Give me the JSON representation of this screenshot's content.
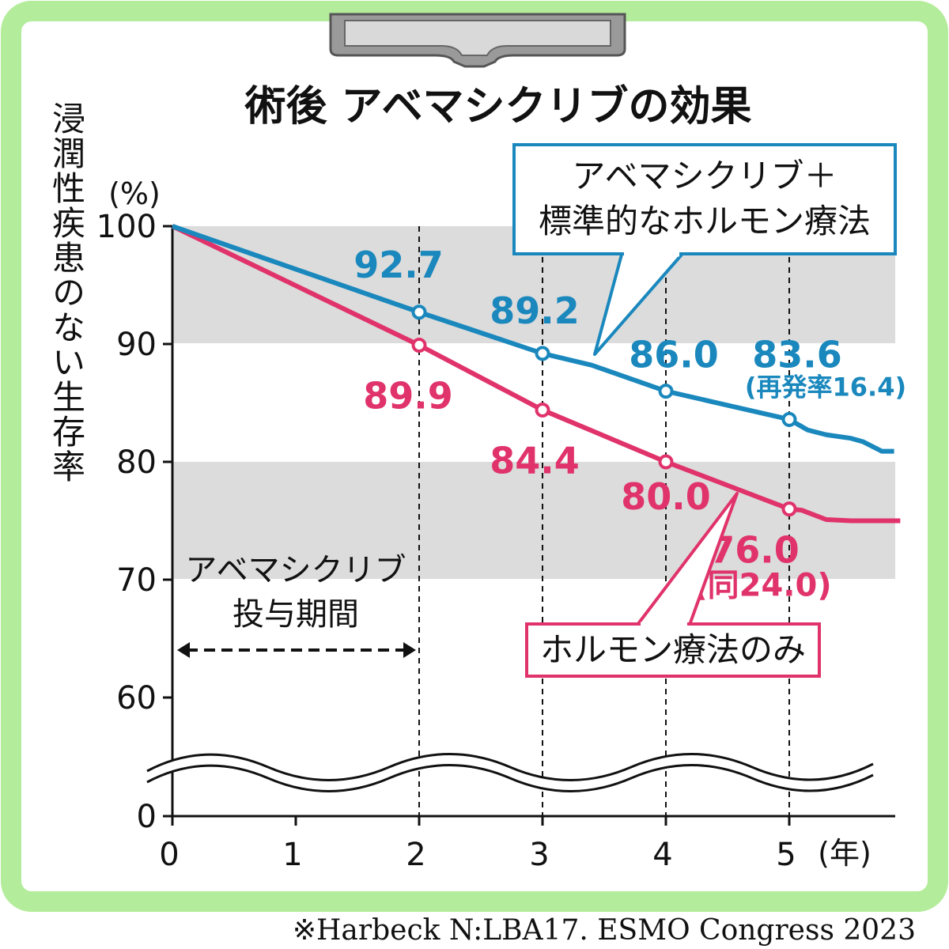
{
  "chart_data": {
    "type": "line",
    "title": "術後 アベマシクリブの効果",
    "ylabel": "浸潤性疾患のない生存率",
    "y_unit": "(%)",
    "x_unit": "(年)",
    "x_ticks": [
      "0",
      "1",
      "2",
      "3",
      "4",
      "5"
    ],
    "y_ticks": [
      "100",
      "90",
      "80",
      "70",
      "60",
      "0"
    ],
    "xlim": [
      0,
      5.85
    ],
    "ylim_visible": [
      60,
      100
    ],
    "axis_break": true,
    "grid": "alternating horizontal bands",
    "series": [
      {
        "name": "アベマシクリブ＋標準的なホルモン療法",
        "legend_line1": "アベマシクリブ＋",
        "legend_line2": "標準的なホルモン療法",
        "color": "#1a88bd",
        "x": [
          0,
          2,
          3,
          3.4,
          4,
          5,
          5.15,
          5.3,
          5.5,
          5.6,
          5.75,
          5.85
        ],
        "y": [
          100,
          92.7,
          89.2,
          88.2,
          86.0,
          83.6,
          82.7,
          82.3,
          82.0,
          81.7,
          80.9,
          80.9
        ],
        "marked_points": [
          {
            "x": 2,
            "y": 92.7,
            "label": "92.7"
          },
          {
            "x": 3,
            "y": 89.2,
            "label": "89.2"
          },
          {
            "x": 4,
            "y": 86.0,
            "label": "86.0"
          },
          {
            "x": 5,
            "y": 83.6,
            "label": "83.6",
            "sublabel": "(再発率16.4)"
          }
        ]
      },
      {
        "name": "ホルモン療法のみ",
        "legend_line1": "ホルモン療法のみ",
        "color": "#e0336b",
        "x": [
          0,
          2,
          3,
          4,
          5,
          5.1,
          5.3,
          5.5,
          5.9
        ],
        "y": [
          100,
          89.9,
          84.4,
          80.0,
          76.0,
          75.9,
          75.1,
          75.0,
          75.0
        ],
        "marked_points": [
          {
            "x": 2,
            "y": 89.9,
            "label": "89.9"
          },
          {
            "x": 3,
            "y": 84.4,
            "label": "84.4"
          },
          {
            "x": 4,
            "y": 80.0,
            "label": "80.0"
          },
          {
            "x": 5,
            "y": 76.0,
            "label": "76.0",
            "sublabel": "(同24.0)"
          }
        ]
      }
    ],
    "annotations": {
      "dosing_line1": "アベマシクリブ",
      "dosing_line2": "投与期間",
      "dosing_range": [
        0,
        2
      ]
    }
  },
  "source": "※Harbeck N:LBA17. ESMO Congress 2023",
  "colors": {
    "frame": "#b3ec9a",
    "band": "#dcdcdc",
    "blue": "#1a88bd",
    "pink": "#e0336b"
  }
}
